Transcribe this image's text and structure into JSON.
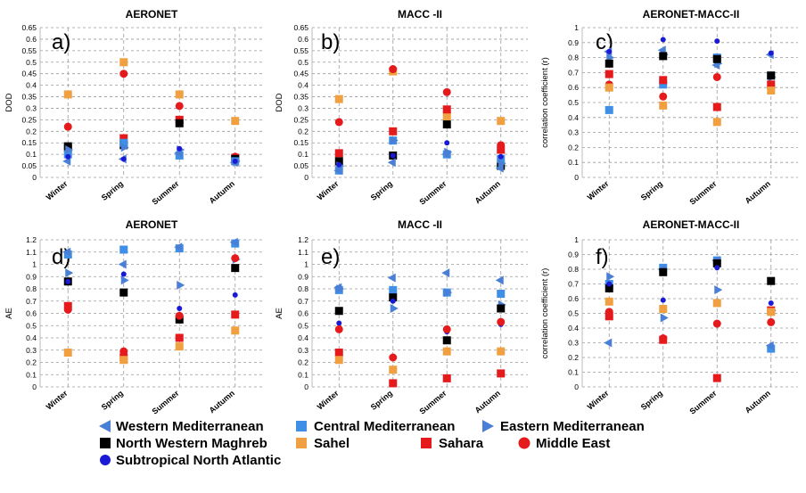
{
  "colors": {
    "western_med": "#4a7fd6",
    "central_med": "#3f8fe6",
    "eastern_med": "#4a7fd6",
    "nw_maghreb": "#000000",
    "sahel": "#f0a040",
    "sahara": "#e41a1c",
    "middle_east": "#e41a1c",
    "subtropical_na": "#1a1ad6"
  },
  "legend": [
    {
      "key": "western_med",
      "label": "Western Mediterranean",
      "marker": "triangle-left"
    },
    {
      "key": "central_med",
      "label": "Central Mediterranean",
      "marker": "square-blue"
    },
    {
      "key": "eastern_med",
      "label": "Eastern Mediterranean",
      "marker": "triangle-right"
    },
    {
      "key": "nw_maghreb",
      "label": "North Western Maghreb",
      "marker": "square-black"
    },
    {
      "key": "sahel",
      "label": "Sahel",
      "marker": "square-orange"
    },
    {
      "key": "sahara",
      "label": "Sahara",
      "marker": "square-red"
    },
    {
      "key": "middle_east",
      "label": "Middle East",
      "marker": "circle-red"
    },
    {
      "key": "subtropical_na",
      "label": "Subtropical North Atlantic",
      "marker": "circle-blue"
    }
  ],
  "chart_data": [
    {
      "id": "a",
      "type": "scatter",
      "panel_label": "a)",
      "title": "AERONET",
      "ylabel": "DOD",
      "ylim": [
        0,
        0.65
      ],
      "ystep": 0.05,
      "grid": true,
      "categories": [
        "Winter",
        "Spring",
        "Summer",
        "Autumn"
      ],
      "series": [
        {
          "key": "sahel",
          "values": [
            0.36,
            0.5,
            0.36,
            0.245
          ]
        },
        {
          "key": "middle_east",
          "values": [
            0.22,
            0.45,
            0.31,
            0.09
          ]
        },
        {
          "key": "sahara",
          "values": [
            0.125,
            0.17,
            0.25,
            0.085
          ]
        },
        {
          "key": "nw_maghreb",
          "values": [
            0.135,
            0.14,
            0.235,
            0.08
          ]
        },
        {
          "key": "central_med",
          "values": [
            0.1,
            0.15,
            0.095,
            0.07
          ]
        },
        {
          "key": "eastern_med",
          "values": [
            0.12,
            0.13,
            0.12,
            0.07
          ]
        },
        {
          "key": "western_med",
          "values": [
            0.07,
            0.08,
            0.105,
            0.065
          ]
        },
        {
          "key": "subtropical_na",
          "values": [
            0.09,
            0.08,
            0.125,
            0.07
          ]
        }
      ]
    },
    {
      "id": "b",
      "type": "scatter",
      "panel_label": "b)",
      "title": "MACC -II",
      "ylabel": "DOD",
      "ylim": [
        0,
        0.65
      ],
      "ystep": 0.05,
      "grid": true,
      "categories": [
        "Winter",
        "Spring",
        "Summer",
        "Autumn"
      ],
      "series": [
        {
          "key": "sahel",
          "values": [
            0.34,
            0.46,
            0.265,
            0.245
          ]
        },
        {
          "key": "middle_east",
          "values": [
            0.24,
            0.47,
            0.37,
            0.14
          ]
        },
        {
          "key": "sahara",
          "values": [
            0.105,
            0.2,
            0.295,
            0.12
          ]
        },
        {
          "key": "nw_maghreb",
          "values": [
            0.07,
            0.095,
            0.23,
            0.05
          ]
        },
        {
          "key": "central_med",
          "values": [
            0.03,
            0.16,
            0.1,
            0.08
          ]
        },
        {
          "key": "eastern_med",
          "values": [
            0.05,
            0.16,
            0.11,
            0.06
          ]
        },
        {
          "key": "western_med",
          "values": [
            0.03,
            0.065,
            0.1,
            0.04
          ]
        },
        {
          "key": "subtropical_na",
          "values": [
            0.055,
            0.095,
            0.15,
            0.09
          ]
        }
      ]
    },
    {
      "id": "c",
      "type": "scatter",
      "panel_label": "c)",
      "title": "AERONET-MACC-II",
      "ylabel": "correlation coefficient (r)",
      "ylim": [
        0,
        1
      ],
      "ystep": 0.1,
      "grid": true,
      "categories": [
        "Winter",
        "Spring",
        "Summer",
        "Autumn"
      ],
      "series": [
        {
          "key": "central_med",
          "values": [
            0.45,
            0.62,
            0.8,
            0.68
          ]
        },
        {
          "key": "western_med",
          "values": [
            0.84,
            0.85,
            0.75,
            0.82
          ]
        },
        {
          "key": "eastern_med",
          "values": [
            0.8,
            0.82,
            0.76,
            0.67
          ]
        },
        {
          "key": "subtropical_na",
          "values": [
            0.84,
            0.92,
            0.91,
            0.83
          ]
        },
        {
          "key": "nw_maghreb",
          "values": [
            0.76,
            0.81,
            0.79,
            0.68
          ]
        },
        {
          "key": "sahara",
          "values": [
            0.69,
            0.65,
            0.47,
            0.62
          ]
        },
        {
          "key": "middle_east",
          "values": [
            0.62,
            0.54,
            0.67,
            0.61
          ]
        },
        {
          "key": "sahel",
          "values": [
            0.6,
            0.48,
            0.37,
            0.58
          ]
        }
      ]
    },
    {
      "id": "d",
      "type": "scatter",
      "panel_label": "d)",
      "title": "AERONET",
      "ylabel": "AE",
      "ylim": [
        0,
        1.2
      ],
      "ystep": 0.1,
      "grid": true,
      "categories": [
        "Winter",
        "Spring",
        "Summer",
        "Autumn"
      ],
      "series": [
        {
          "key": "central_med",
          "values": [
            1.08,
            1.12,
            1.13,
            1.17
          ]
        },
        {
          "key": "western_med",
          "values": [
            1.1,
            1.0,
            1.14,
            1.18
          ]
        },
        {
          "key": "eastern_med",
          "values": [
            0.93,
            0.87,
            0.83,
            1.04
          ]
        },
        {
          "key": "nw_maghreb",
          "values": [
            0.86,
            0.77,
            0.55,
            0.97
          ]
        },
        {
          "key": "subtropical_na",
          "values": [
            0.86,
            0.92,
            0.64,
            0.75
          ]
        },
        {
          "key": "middle_east",
          "values": [
            0.63,
            0.29,
            0.58,
            1.05
          ]
        },
        {
          "key": "sahara",
          "values": [
            0.66,
            0.24,
            0.4,
            0.59
          ]
        },
        {
          "key": "sahel",
          "values": [
            0.28,
            0.22,
            0.33,
            0.46
          ]
        }
      ]
    },
    {
      "id": "e",
      "type": "scatter",
      "panel_label": "e)",
      "title": "MACC -II",
      "ylabel": "AE",
      "ylim": [
        0,
        1.2
      ],
      "ystep": 0.1,
      "grid": true,
      "categories": [
        "Winter",
        "Spring",
        "Summer",
        "Autumn"
      ],
      "series": [
        {
          "key": "central_med",
          "values": [
            0.79,
            0.79,
            0.77,
            0.76
          ]
        },
        {
          "key": "western_med",
          "values": [
            0.81,
            0.89,
            0.93,
            0.87
          ]
        },
        {
          "key": "eastern_med",
          "values": [
            0.8,
            0.64,
            0.77,
            0.67
          ]
        },
        {
          "key": "nw_maghreb",
          "values": [
            0.62,
            0.73,
            0.38,
            0.64
          ]
        },
        {
          "key": "subtropical_na",
          "values": [
            0.52,
            0.7,
            0.45,
            0.51
          ]
        },
        {
          "key": "middle_east",
          "values": [
            0.47,
            0.24,
            0.47,
            0.53
          ]
        },
        {
          "key": "sahara",
          "values": [
            0.28,
            0.03,
            0.07,
            0.11
          ]
        },
        {
          "key": "sahel",
          "values": [
            0.22,
            0.14,
            0.29,
            0.29
          ]
        }
      ]
    },
    {
      "id": "f",
      "type": "scatter",
      "panel_label": "f)",
      "title": "AERONET-MACC-II",
      "ylabel": "correlation coefficient (r)",
      "ylim": [
        0,
        1
      ],
      "ystep": 0.1,
      "grid": true,
      "categories": [
        "Winter",
        "Spring",
        "Summer",
        "Autumn"
      ],
      "series": [
        {
          "key": "central_med",
          "values": [
            0.7,
            0.81,
            0.86,
            0.26
          ]
        },
        {
          "key": "western_med",
          "values": [
            0.3,
            0.8,
            0.86,
            0.28
          ]
        },
        {
          "key": "eastern_med",
          "values": [
            0.75,
            0.47,
            0.66,
            0.52
          ]
        },
        {
          "key": "nw_maghreb",
          "values": [
            0.67,
            0.78,
            0.84,
            0.72
          ]
        },
        {
          "key": "subtropical_na",
          "values": [
            0.7,
            0.59,
            0.81,
            0.57
          ]
        },
        {
          "key": "middle_east",
          "values": [
            0.51,
            0.33,
            0.43,
            0.44
          ]
        },
        {
          "key": "sahara",
          "values": [
            0.48,
            0.32,
            0.06,
            0.52
          ]
        },
        {
          "key": "sahel",
          "values": [
            0.58,
            0.53,
            0.57,
            0.51
          ]
        }
      ]
    }
  ]
}
